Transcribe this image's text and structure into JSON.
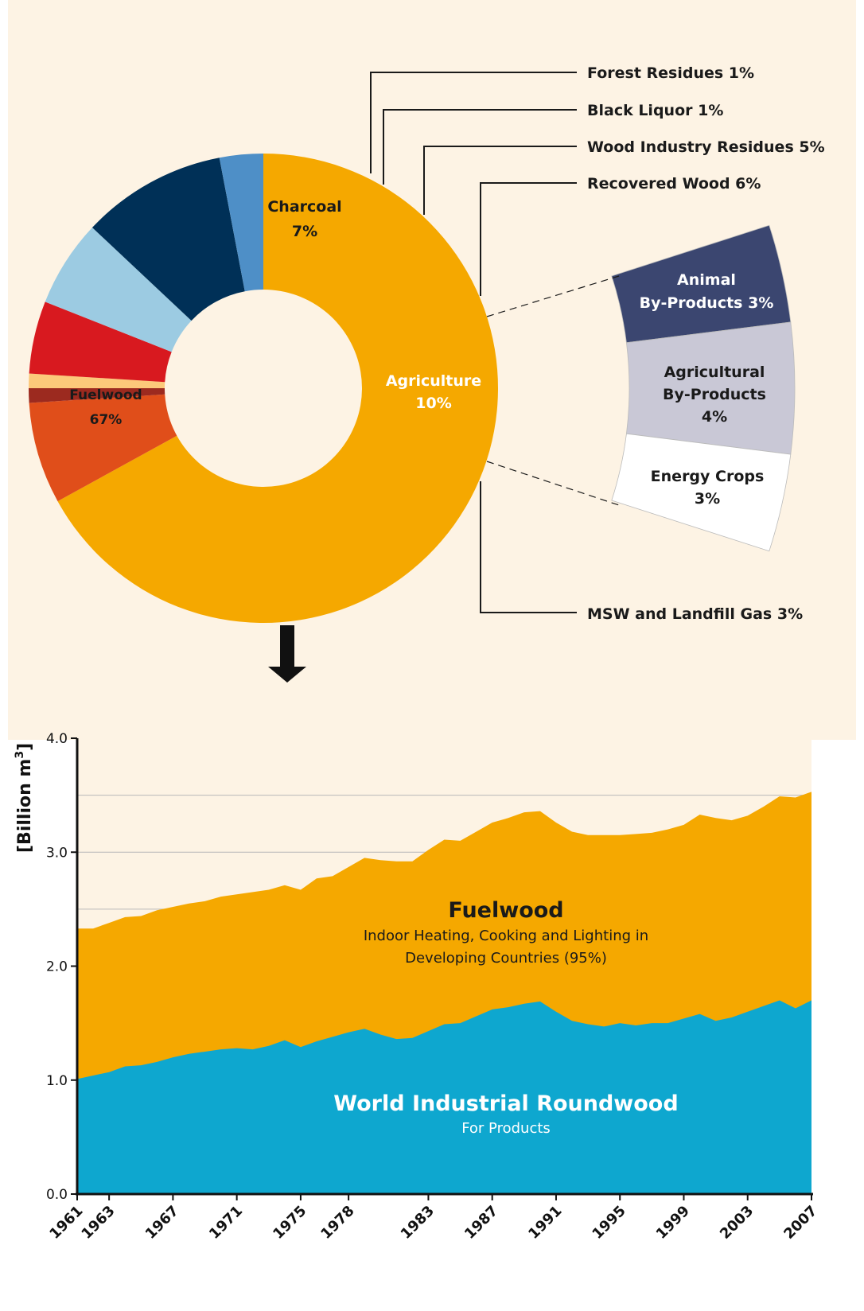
{
  "donut": {
    "slices": [
      {
        "name": "Fuelwood",
        "percent_label": "67%",
        "value": 67,
        "color": "#f5a800"
      },
      {
        "name": "Charcoal",
        "percent_label": "7%",
        "value": 7,
        "color": "#e04e1a"
      },
      {
        "name": "Forest Residues 1%",
        "value": 1,
        "color": "#9c2a1f"
      },
      {
        "name": "Black Liquor 1%",
        "value": 1,
        "color": "#fcc97a"
      },
      {
        "name": "Wood Industry Residues 5%",
        "value": 5,
        "color": "#d8191f"
      },
      {
        "name": "Recovered Wood 6%",
        "value": 6,
        "color": "#9ccbe2"
      },
      {
        "name": "Agriculture",
        "percent_label": "10%",
        "value": 10,
        "color": "#003057"
      },
      {
        "name": "MSW and Landfill Gas 3%",
        "value": 3,
        "color": "#4e8fc7"
      }
    ],
    "agriculture_breakdown": [
      {
        "line1": "Animal",
        "line2": "By-Products 3%",
        "value": 3,
        "color": "#3b4670",
        "text_color": "#ffffff"
      },
      {
        "line1": "Agricultural",
        "line2": "By-Products",
        "line3": "4%",
        "value": 4,
        "color": "#c9c8d6",
        "text_color": "#1a1a1a"
      },
      {
        "line1": "Energy Crops",
        "line2": "3%",
        "value": 3,
        "color": "#ffffff",
        "text_color": "#1a1a1a"
      }
    ]
  },
  "area_chart": {
    "ylabel": "[Billion m",
    "ylabel_sup": "3",
    "ylabel_end": "]",
    "yticks": [
      "0.0",
      "1.0",
      "2.0",
      "3.0",
      "4.0"
    ],
    "xticks": [
      "1961",
      "1963",
      "1967",
      "1971",
      "1975",
      "1978",
      "1983",
      "1987",
      "1991",
      "1995",
      "1999",
      "2003",
      "2007"
    ],
    "fuelwood_title": "Fuelwood",
    "fuelwood_sub1": "Indoor Heating, Cooking and Lighting in",
    "fuelwood_sub2": "Developing Countries (95%)",
    "roundwood_title": "World Industrial Roundwood",
    "roundwood_sub": "For Products",
    "colors": {
      "fuelwood": "#f5a800",
      "roundwood": "#0ea7cf",
      "background": "#fdf3e4"
    }
  },
  "chart_data": [
    {
      "type": "pie",
      "categories": [
        "Fuelwood",
        "Charcoal",
        "Forest Residues",
        "Black Liquor",
        "Wood Industry Residues",
        "Recovered Wood",
        "Agriculture",
        "MSW and Landfill Gas"
      ],
      "values": [
        67,
        7,
        1,
        1,
        5,
        6,
        10,
        3
      ],
      "sub_breakdown": {
        "of": "Agriculture",
        "categories": [
          "Animal By-Products",
          "Agricultural By-Products",
          "Energy Crops"
        ],
        "values": [
          3,
          4,
          3
        ]
      }
    },
    {
      "type": "area",
      "ylim": [
        0,
        4.0
      ],
      "x": [
        1961,
        1962,
        1963,
        1964,
        1965,
        1966,
        1967,
        1968,
        1969,
        1970,
        1971,
        1972,
        1973,
        1974,
        1975,
        1976,
        1977,
        1978,
        1979,
        1980,
        1981,
        1982,
        1983,
        1984,
        1985,
        1986,
        1987,
        1988,
        1989,
        1990,
        1991,
        1992,
        1993,
        1994,
        1995,
        1996,
        1997,
        1998,
        1999,
        2000,
        2001,
        2002,
        2003,
        2004,
        2005,
        2006,
        2007
      ],
      "series": [
        {
          "name": "World Industrial Roundwood",
          "values": [
            1.01,
            1.04,
            1.07,
            1.12,
            1.13,
            1.16,
            1.2,
            1.23,
            1.25,
            1.27,
            1.28,
            1.27,
            1.3,
            1.35,
            1.29,
            1.34,
            1.38,
            1.42,
            1.45,
            1.4,
            1.36,
            1.37,
            1.43,
            1.49,
            1.5,
            1.56,
            1.62,
            1.64,
            1.67,
            1.69,
            1.6,
            1.52,
            1.49,
            1.47,
            1.5,
            1.48,
            1.5,
            1.5,
            1.54,
            1.58,
            1.52,
            1.55,
            1.6,
            1.65,
            1.7,
            1.63,
            1.7
          ]
        },
        {
          "name": "Fuelwood",
          "values": [
            2.33,
            2.33,
            2.38,
            2.43,
            2.44,
            2.49,
            2.52,
            2.55,
            2.57,
            2.61,
            2.63,
            2.65,
            2.67,
            2.71,
            2.67,
            2.77,
            2.79,
            2.87,
            2.95,
            2.93,
            2.92,
            2.92,
            3.02,
            3.11,
            3.1,
            3.18,
            3.26,
            3.3,
            3.35,
            3.36,
            3.26,
            3.18,
            3.15,
            3.15,
            3.15,
            3.16,
            3.17,
            3.2,
            3.24,
            3.33,
            3.3,
            3.28,
            3.32,
            3.4,
            3.49,
            3.48,
            3.53
          ]
        }
      ]
    }
  ]
}
